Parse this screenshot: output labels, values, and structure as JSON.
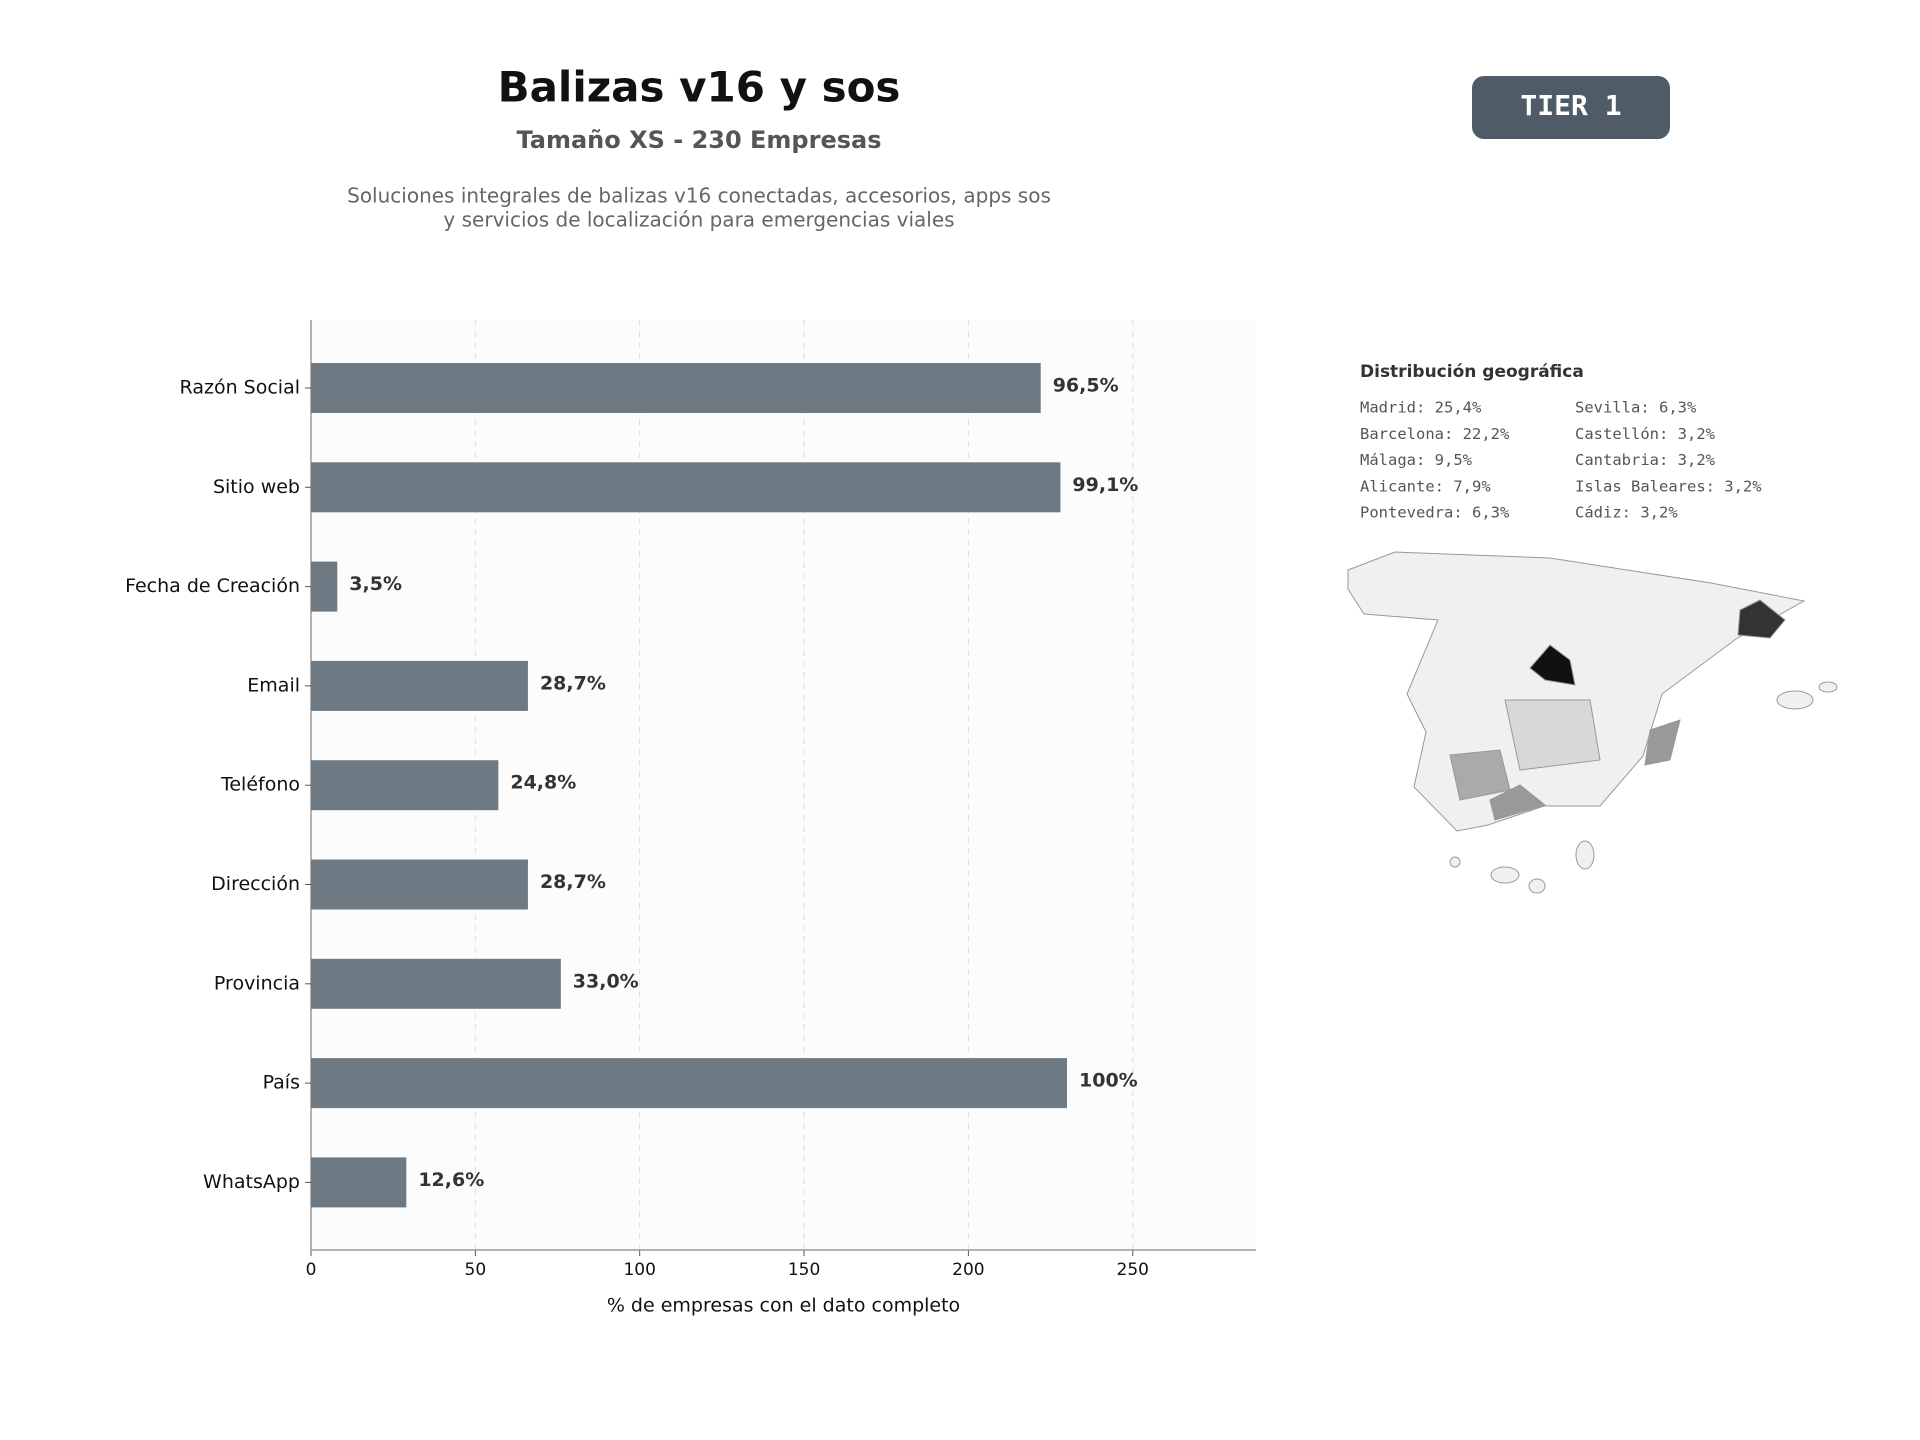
{
  "header": {
    "title": "Balizas v16 y sos",
    "subtitle": "Tamaño XS - 230 Empresas",
    "description": [
      "Soluciones integrales de balizas v16 conectadas, accesorios, apps sos",
      "y servicios de localización para emergencias viales"
    ],
    "badge": "TIER 1"
  },
  "chart_data": {
    "type": "bar",
    "orientation": "horizontal",
    "categories": [
      "Razón Social",
      "Sitio web",
      "Fecha de Creación",
      "Email",
      "Teléfono",
      "Dirección",
      "Provincia",
      "País",
      "WhatsApp"
    ],
    "values": [
      222,
      228,
      8,
      66,
      57,
      66,
      76,
      230,
      29
    ],
    "value_labels": [
      "96,5%",
      "99,1%",
      "3,5%",
      "28,7%",
      "24,8%",
      "28,7%",
      "33,0%",
      "100%",
      "12,6%"
    ],
    "color": "#6e7a83",
    "xlabel": "% de empresas con el dato completo",
    "xlim": [
      0,
      287.5
    ],
    "xticks": [
      0,
      50,
      100,
      150,
      200,
      250
    ],
    "grid": true
  },
  "geo": {
    "title": "Distribución geográfica",
    "items": [
      "Madrid: 25,4%",
      "Barcelona: 22,2%",
      "Málaga: 9,5%",
      "Alicante: 7,9%",
      "Pontevedra: 6,3%",
      "Sevilla: 6,3%",
      "Castellón: 3,2%",
      "Cantabria: 3,2%",
      "Islas Baleares: 3,2%",
      "Cádiz: 3,2%"
    ]
  }
}
